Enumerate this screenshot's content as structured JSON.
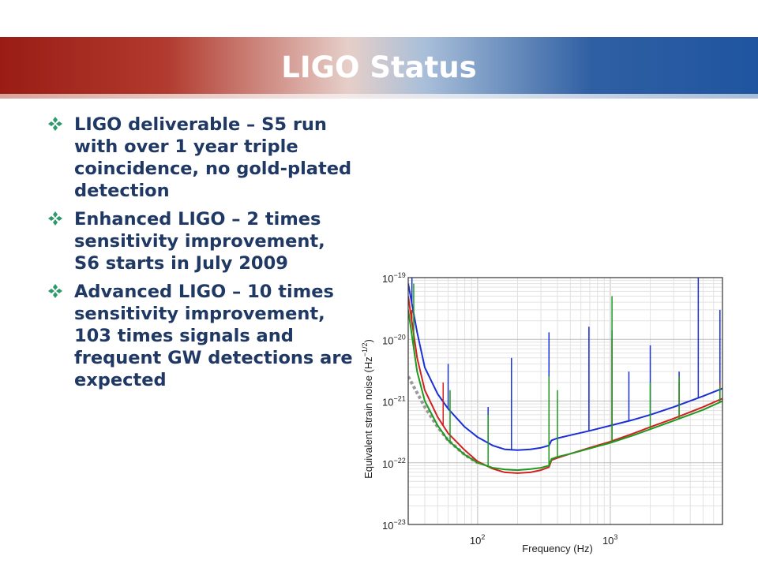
{
  "slide": {
    "title": "LIGO Status",
    "bullet_icon": "four-diamond-star-icon",
    "bullets": [
      "LIGO deliverable – S5 run with over 1 year triple coincidence, no gold-plated detection",
      "Enhanced LIGO – 2 times sensitivity improvement, S6 starts in July 2009",
      "Advanced LIGO – 10 times sensitivity improvement, 103 times signals and frequent GW detections are expected"
    ],
    "colors": {
      "title_text": "#ffffff",
      "bullet_text": "#1f3864",
      "bullet_icon": "#2e9a6b",
      "banner_left": "#9a1c14",
      "banner_right": "#1f55a0"
    }
  },
  "chart_data": {
    "type": "line",
    "title": "",
    "xlabel": "Frequency (Hz)",
    "ylabel": "Equivalent strain noise (Hz",
    "ylabel_exp": "−1/2",
    "ylabel_close": ")",
    "x_scale": "log",
    "y_scale": "log",
    "xlim": [
      30,
      7000
    ],
    "ylim": [
      1e-23,
      1e-19
    ],
    "x_ticks": [
      {
        "value": 100,
        "base": "10",
        "exp": "2"
      },
      {
        "value": 1000,
        "base": "10",
        "exp": "3"
      }
    ],
    "y_ticks": [
      {
        "value": 1e-19,
        "base": "10",
        "exp": "−19"
      },
      {
        "value": 1e-20,
        "base": "10",
        "exp": "−20"
      },
      {
        "value": 1e-21,
        "base": "10",
        "exp": "−21"
      },
      {
        "value": 1e-22,
        "base": "10",
        "exp": "−22"
      },
      {
        "value": 1e-23,
        "base": "10",
        "exp": "−23"
      }
    ],
    "grid": true,
    "legend": "none",
    "series": [
      {
        "color": "#1a2fd6",
        "style": "solid",
        "x": [
          30,
          35,
          40,
          50,
          60,
          80,
          100,
          130,
          160,
          200,
          250,
          300,
          345,
          360,
          400,
          500,
          700,
          1000,
          1500,
          2000,
          3000,
          5000,
          7000
        ],
        "y": [
          8e-20,
          1.3e-20,
          3.5e-21,
          1.3e-21,
          7.5e-22,
          3.8e-22,
          2.6e-22,
          1.9e-22,
          1.65e-22,
          1.6e-22,
          1.65e-22,
          1.75e-22,
          1.9e-22,
          2.3e-22,
          2.5e-22,
          2.8e-22,
          3.3e-22,
          4e-22,
          5e-22,
          6e-22,
          8e-22,
          1.2e-21,
          1.6e-21
        ],
        "lines": [
          {
            "x": 32,
            "y": 1e-19
          },
          {
            "x": 60,
            "y": 4e-21
          },
          {
            "x": 120,
            "y": 8e-22
          },
          {
            "x": 180,
            "y": 5e-21
          },
          {
            "x": 345,
            "y": 1.3e-20
          },
          {
            "x": 690,
            "y": 1.6e-20
          },
          {
            "x": 1030,
            "y": 1.4e-20
          },
          {
            "x": 1380,
            "y": 3e-21
          },
          {
            "x": 2000,
            "y": 8e-21
          },
          {
            "x": 3300,
            "y": 3e-21
          },
          {
            "x": 4600,
            "y": 1e-19
          },
          {
            "x": 6700,
            "y": 3e-20
          }
        ]
      },
      {
        "color": "#d22020",
        "style": "solid",
        "x": [
          30,
          35,
          40,
          50,
          60,
          80,
          100,
          130,
          160,
          200,
          250,
          300,
          345,
          360,
          400,
          500,
          700,
          1000,
          1500,
          2000,
          3000,
          5000,
          7000
        ],
        "y": [
          5e-20,
          5e-21,
          1.5e-21,
          5.5e-22,
          3e-22,
          1.6e-22,
          1.05e-22,
          8e-23,
          7e-23,
          6.8e-23,
          7e-23,
          7.6e-23,
          8.5e-23,
          1.1e-22,
          1.2e-22,
          1.4e-22,
          1.75e-22,
          2.2e-22,
          3e-22,
          3.8e-22,
          5.2e-22,
          8e-22,
          1.1e-21
        ],
        "lines": [
          {
            "x": 32,
            "y": 3e-20
          },
          {
            "x": 55,
            "y": 2e-21
          },
          {
            "x": 345,
            "y": 2e-21
          },
          {
            "x": 1030,
            "y": 1e-20
          },
          {
            "x": 3300,
            "y": 2e-21
          },
          {
            "x": 6700,
            "y": 2e-21
          }
        ]
      },
      {
        "color": "#1f9a1f",
        "style": "solid",
        "x": [
          30,
          35,
          40,
          50,
          60,
          80,
          100,
          130,
          160,
          200,
          250,
          300,
          345,
          360,
          400,
          500,
          700,
          1000,
          1500,
          2000,
          3000,
          5000,
          7000
        ],
        "y": [
          3e-20,
          3e-21,
          1e-21,
          4e-22,
          2.3e-22,
          1.35e-22,
          1e-22,
          8.3e-23,
          7.8e-23,
          7.6e-23,
          7.9e-23,
          8.3e-23,
          9e-23,
          1.15e-22,
          1.25e-22,
          1.4e-22,
          1.7e-22,
          2.1e-22,
          2.8e-22,
          3.5e-22,
          4.8e-22,
          7.2e-22,
          1e-21
        ],
        "lines": [
          {
            "x": 33,
            "y": 8e-20
          },
          {
            "x": 62,
            "y": 1.5e-21
          },
          {
            "x": 120,
            "y": 6e-22
          },
          {
            "x": 345,
            "y": 2.5e-21
          },
          {
            "x": 400,
            "y": 1.5e-21
          },
          {
            "x": 1030,
            "y": 5e-20
          },
          {
            "x": 2000,
            "y": 2e-21
          },
          {
            "x": 3300,
            "y": 2.5e-21
          },
          {
            "x": 6700,
            "y": 1.8e-21
          }
        ]
      },
      {
        "color": "#9a9a9a",
        "style": "dotted",
        "x": [
          30,
          40,
          50,
          60,
          80,
          100
        ],
        "y": [
          2.5e-21,
          8e-22,
          3.8e-22,
          2.3e-22,
          1.35e-22,
          1e-22
        ],
        "lines": []
      }
    ]
  }
}
